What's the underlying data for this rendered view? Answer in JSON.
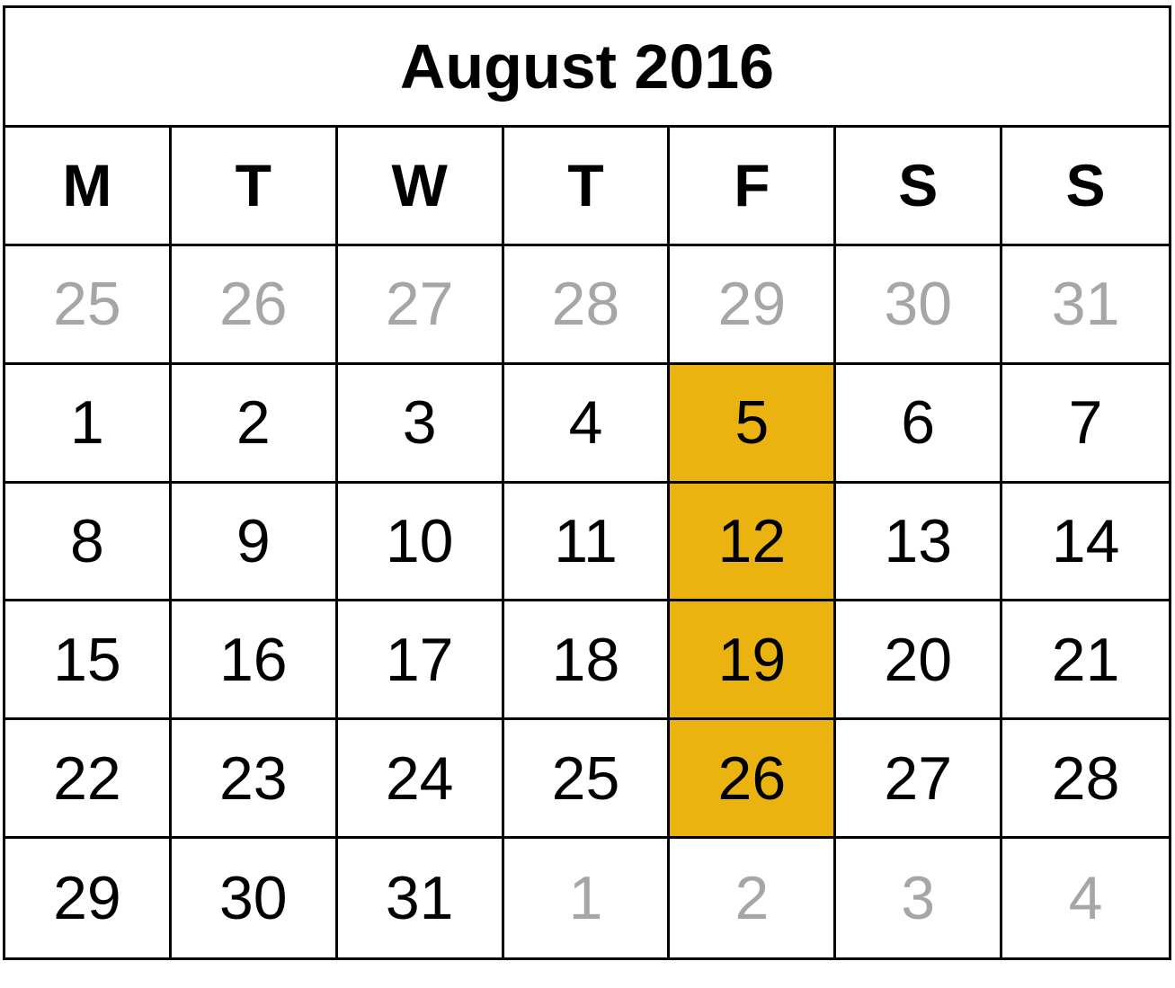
{
  "calendar": {
    "title": "August 2016",
    "highlight_color": "#ebb30f",
    "muted_color": "#a6a6a6",
    "weekday_headers": [
      "M",
      "T",
      "W",
      "T",
      "F",
      "S",
      "S"
    ],
    "weeks": [
      [
        {
          "day": "25",
          "muted": true
        },
        {
          "day": "26",
          "muted": true
        },
        {
          "day": "27",
          "muted": true
        },
        {
          "day": "28",
          "muted": true
        },
        {
          "day": "29",
          "muted": true
        },
        {
          "day": "30",
          "muted": true
        },
        {
          "day": "31",
          "muted": true
        }
      ],
      [
        {
          "day": "1"
        },
        {
          "day": "2"
        },
        {
          "day": "3"
        },
        {
          "day": "4"
        },
        {
          "day": "5",
          "highlight": true
        },
        {
          "day": "6"
        },
        {
          "day": "7"
        }
      ],
      [
        {
          "day": "8"
        },
        {
          "day": "9"
        },
        {
          "day": "10"
        },
        {
          "day": "11"
        },
        {
          "day": "12",
          "highlight": true
        },
        {
          "day": "13"
        },
        {
          "day": "14"
        }
      ],
      [
        {
          "day": "15"
        },
        {
          "day": "16"
        },
        {
          "day": "17"
        },
        {
          "day": "18"
        },
        {
          "day": "19",
          "highlight": true
        },
        {
          "day": "20"
        },
        {
          "day": "21"
        }
      ],
      [
        {
          "day": "22"
        },
        {
          "day": "23"
        },
        {
          "day": "24"
        },
        {
          "day": "25"
        },
        {
          "day": "26",
          "highlight": true
        },
        {
          "day": "27"
        },
        {
          "day": "28"
        }
      ],
      [
        {
          "day": "29"
        },
        {
          "day": "30"
        },
        {
          "day": "31"
        },
        {
          "day": "1",
          "muted": true
        },
        {
          "day": "2",
          "muted": true
        },
        {
          "day": "3",
          "muted": true
        },
        {
          "day": "4",
          "muted": true
        }
      ]
    ]
  }
}
